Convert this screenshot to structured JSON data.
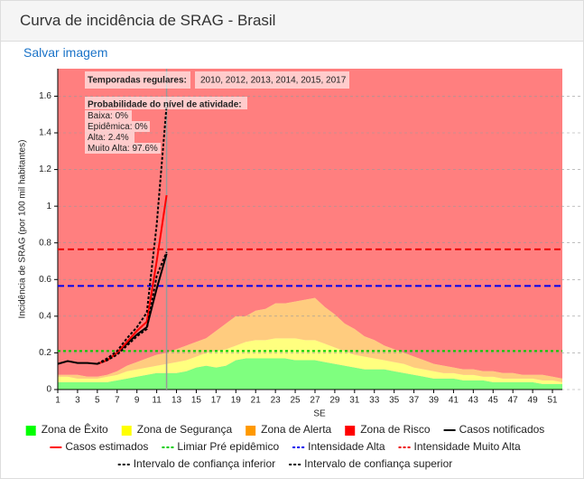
{
  "page": {
    "link": "Salvar imagem"
  },
  "chart_data": {
    "type": "line",
    "title": "Curva de incidência de SRAG - Brasil",
    "y_label": "Incidência de SRAG (por 100 mil habitantes)",
    "x_label": "SE",
    "x": [
      1,
      2,
      3,
      4,
      5,
      6,
      7,
      8,
      9,
      10,
      11,
      12,
      13,
      14,
      15,
      16,
      17,
      18,
      19,
      20,
      21,
      22,
      23,
      24,
      25,
      26,
      27,
      28,
      29,
      30,
      31,
      32,
      33,
      34,
      35,
      36,
      37,
      38,
      39,
      40,
      41,
      42,
      43,
      44,
      45,
      46,
      47,
      48,
      49,
      50,
      51,
      52
    ],
    "xlim": [
      1,
      52
    ],
    "ylim": [
      0,
      1.75
    ],
    "xticks": [
      1,
      3,
      5,
      7,
      9,
      11,
      13,
      15,
      17,
      19,
      21,
      23,
      25,
      27,
      29,
      31,
      33,
      35,
      37,
      39,
      41,
      43,
      45,
      47,
      49,
      51
    ],
    "yticks": [
      0,
      0.2,
      0.4,
      0.6,
      0.8,
      1,
      1.2,
      1.4,
      1.6
    ],
    "grid": true,
    "zones": [
      {
        "name": "Zona de Êxito",
        "color": "#00ff00",
        "values": [
          0.04,
          0.04,
          0.04,
          0.04,
          0.04,
          0.04,
          0.05,
          0.06,
          0.07,
          0.08,
          0.09,
          0.09,
          0.09,
          0.1,
          0.12,
          0.13,
          0.12,
          0.13,
          0.16,
          0.17,
          0.17,
          0.17,
          0.17,
          0.17,
          0.16,
          0.16,
          0.16,
          0.15,
          0.14,
          0.13,
          0.12,
          0.11,
          0.11,
          0.11,
          0.1,
          0.09,
          0.08,
          0.07,
          0.06,
          0.06,
          0.06,
          0.05,
          0.05,
          0.05,
          0.04,
          0.04,
          0.04,
          0.04,
          0.04,
          0.03,
          0.03,
          0.03
        ]
      },
      {
        "name": "Zona de Segurança",
        "color": "#ffff00",
        "values": [
          0.03,
          0.03,
          0.02,
          0.02,
          0.02,
          0.03,
          0.03,
          0.04,
          0.04,
          0.04,
          0.04,
          0.05,
          0.06,
          0.06,
          0.06,
          0.07,
          0.09,
          0.09,
          0.08,
          0.09,
          0.1,
          0.1,
          0.11,
          0.11,
          0.12,
          0.11,
          0.11,
          0.1,
          0.09,
          0.08,
          0.07,
          0.07,
          0.06,
          0.05,
          0.05,
          0.05,
          0.04,
          0.04,
          0.04,
          0.03,
          0.03,
          0.03,
          0.03,
          0.02,
          0.03,
          0.02,
          0.02,
          0.02,
          0.02,
          0.02,
          0.02,
          0.01
        ]
      },
      {
        "name": "Zona de Alerta",
        "color": "#ff9900",
        "values": [
          0.01,
          0.01,
          0.02,
          0.01,
          0.01,
          0.01,
          0.02,
          0.03,
          0.04,
          0.05,
          0.06,
          0.06,
          0.07,
          0.08,
          0.08,
          0.08,
          0.11,
          0.14,
          0.16,
          0.14,
          0.16,
          0.17,
          0.19,
          0.19,
          0.2,
          0.22,
          0.23,
          0.2,
          0.18,
          0.15,
          0.14,
          0.11,
          0.1,
          0.08,
          0.07,
          0.06,
          0.06,
          0.05,
          0.04,
          0.04,
          0.03,
          0.03,
          0.03,
          0.03,
          0.03,
          0.03,
          0.03,
          0.02,
          0.02,
          0.03,
          0.02,
          0.02
        ]
      }
    ],
    "risk_zone": {
      "name": "Zona de Risco",
      "color": "#ff0000"
    },
    "series": [
      {
        "name": "Casos notificados",
        "color": "#000000",
        "dash": "none",
        "values": [
          0.14,
          0.155,
          0.145,
          0.145,
          0.14,
          0.16,
          0.2,
          0.25,
          0.3,
          0.34,
          0.55,
          0.74,
          null,
          null,
          null,
          null,
          null,
          null,
          null,
          null,
          null,
          null,
          null,
          null,
          null,
          null,
          null,
          null,
          null,
          null,
          null,
          null,
          null,
          null,
          null,
          null,
          null,
          null,
          null,
          null,
          null,
          null,
          null,
          null,
          null,
          null,
          null,
          null,
          null,
          null,
          null,
          null
        ]
      },
      {
        "name": "Casos estimados",
        "color": "#ff0000",
        "dash": "none",
        "values": [
          null,
          null,
          null,
          null,
          0.14,
          0.16,
          0.2,
          0.26,
          0.32,
          0.37,
          0.7,
          1.06,
          null,
          null,
          null,
          null,
          null,
          null,
          null,
          null,
          null,
          null,
          null,
          null,
          null,
          null,
          null,
          null,
          null,
          null,
          null,
          null,
          null,
          null,
          null,
          null,
          null,
          null,
          null,
          null,
          null,
          null,
          null,
          null,
          null,
          null,
          null,
          null,
          null,
          null,
          null,
          null
        ]
      },
      {
        "name": "Intervalo de confiança inferior",
        "color": "#000000",
        "dash": "3,2",
        "values": [
          null,
          null,
          null,
          null,
          0.14,
          0.16,
          0.19,
          0.24,
          0.29,
          0.33,
          0.62,
          0.75,
          null,
          null,
          null,
          null,
          null,
          null,
          null,
          null,
          null,
          null,
          null,
          null,
          null,
          null,
          null,
          null,
          null,
          null,
          null,
          null,
          null,
          null,
          null,
          null,
          null,
          null,
          null,
          null,
          null,
          null,
          null,
          null,
          null,
          null,
          null,
          null,
          null,
          null,
          null,
          null
        ]
      },
      {
        "name": "Intervalo de confiança superior",
        "color": "#000000",
        "dash": "3,2",
        "values": [
          null,
          null,
          null,
          null,
          0.14,
          0.17,
          0.21,
          0.28,
          0.34,
          0.42,
          0.9,
          1.55,
          null,
          null,
          null,
          null,
          null,
          null,
          null,
          null,
          null,
          null,
          null,
          null,
          null,
          null,
          null,
          null,
          null,
          null,
          null,
          null,
          null,
          null,
          null,
          null,
          null,
          null,
          null,
          null,
          null,
          null,
          null,
          null,
          null,
          null,
          null,
          null,
          null,
          null,
          null,
          null
        ]
      }
    ],
    "thresholds": [
      {
        "name": "Limiar Pré epidêmico",
        "color": "#00cc00",
        "dash": "3,3",
        "value": 0.21
      },
      {
        "name": "Intensidade Alta",
        "color": "#0000ee",
        "dash": "7,4",
        "value": 0.565
      },
      {
        "name": "Intensidade Muito Alta",
        "color": "#ee0000",
        "dash": "7,4",
        "value": 0.765
      }
    ],
    "current_week": 12,
    "annotations": {
      "seasons_label": "Temporadas regulares:",
      "seasons": "2010, 2012, 2013, 2014, 2015, 2017",
      "prob_title": "Probabilidade do nível de atividade:",
      "probs": [
        "Baixa: 0%",
        "Epidêmica: 0%",
        "Alta: 2.4%",
        "Muito Alta: 97.6%"
      ]
    }
  }
}
